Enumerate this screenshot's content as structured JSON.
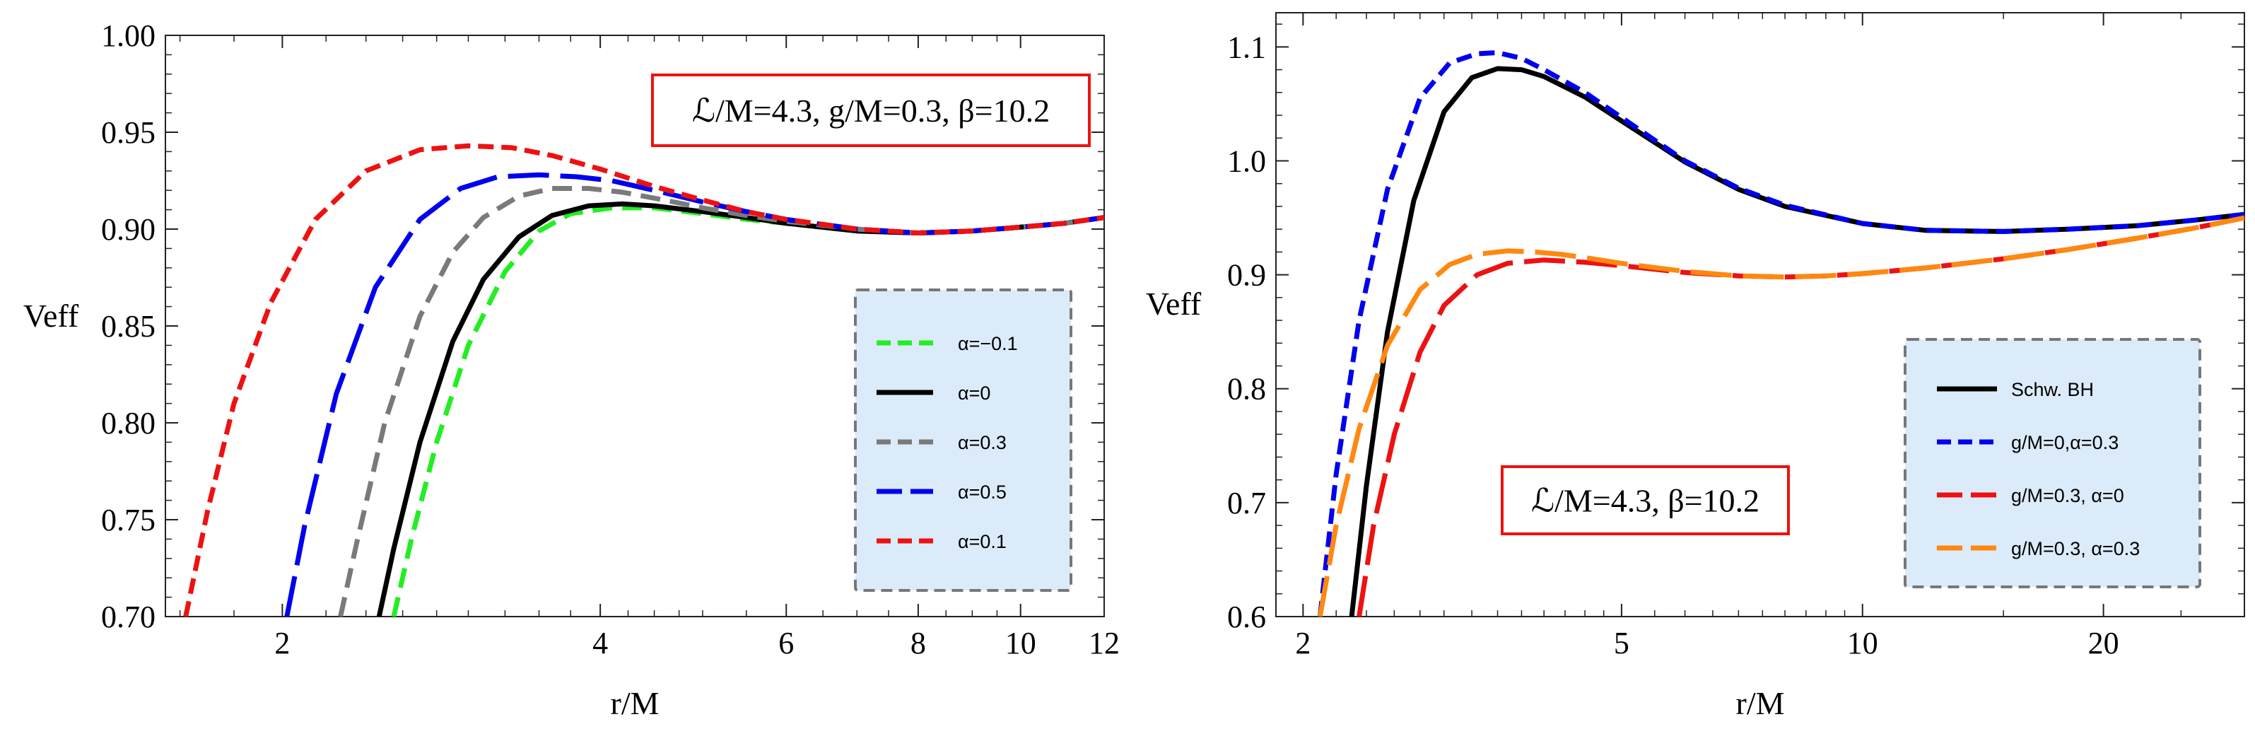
{
  "chart_data": [
    {
      "type": "line",
      "panel": "left",
      "xlabel": "r/M",
      "ylabel": "Veff",
      "xscale": "log",
      "xlim": [
        1.55,
        12
      ],
      "ylim": [
        0.7,
        1.0
      ],
      "x_ticks": [
        2,
        4,
        6,
        8,
        10,
        12
      ],
      "x_tick_labels": [
        "2",
        "4",
        "6",
        "8",
        "10",
        "12"
      ],
      "y_ticks": [
        0.7,
        0.75,
        0.8,
        0.85,
        0.9,
        0.95,
        1.0
      ],
      "y_tick_labels": [
        "0.70",
        "0.75",
        "0.80",
        "0.85",
        "0.90",
        "0.95",
        "1.00"
      ],
      "annotation": "ℒ/M=4.3, g/M=0.3, β=10.2",
      "legend_position": "right-middle",
      "series": [
        {
          "name": "α=−0.1",
          "color": "#22ee22",
          "dash": "medium-dash",
          "x": [
            2.55,
            2.65,
            2.8,
            3.0,
            3.25,
            3.5,
            3.75,
            4.1,
            4.5,
            5.0,
            5.5,
            6.0,
            7.0,
            8.0,
            9.0,
            10.0,
            11.0,
            12.0
          ],
          "y": [
            0.7,
            0.74,
            0.79,
            0.84,
            0.878,
            0.899,
            0.908,
            0.911,
            0.911,
            0.908,
            0.905,
            0.903,
            0.899,
            0.898,
            0.899,
            0.901,
            0.903,
            0.906
          ]
        },
        {
          "name": "α=0",
          "color": "#000000",
          "dash": "solid",
          "x": [
            2.47,
            2.55,
            2.7,
            2.9,
            3.1,
            3.35,
            3.6,
            3.9,
            4.2,
            4.5,
            5.0,
            5.5,
            6.0,
            7.0,
            8.0,
            9.0,
            10.0,
            11.0,
            12.0
          ],
          "y": [
            0.7,
            0.735,
            0.79,
            0.842,
            0.874,
            0.896,
            0.907,
            0.912,
            0.913,
            0.912,
            0.909,
            0.906,
            0.903,
            0.899,
            0.898,
            0.899,
            0.901,
            0.903,
            0.906
          ]
        },
        {
          "name": "α=0.3",
          "color": "#7a7a7a",
          "dash": "medium-dash",
          "x": [
            2.27,
            2.35,
            2.5,
            2.7,
            2.9,
            3.1,
            3.35,
            3.6,
            3.9,
            4.2,
            4.6,
            5.0,
            5.5,
            6.0,
            7.0,
            8.0,
            9.0,
            10.0,
            11.0,
            12.0
          ],
          "y": [
            0.7,
            0.737,
            0.8,
            0.855,
            0.888,
            0.906,
            0.917,
            0.921,
            0.921,
            0.919,
            0.915,
            0.911,
            0.907,
            0.904,
            0.9,
            0.898,
            0.899,
            0.901,
            0.903,
            0.906
          ]
        },
        {
          "name": "α=0.5",
          "color": "#0000ee",
          "dash": "long-dash",
          "x": [
            2.02,
            2.1,
            2.25,
            2.45,
            2.7,
            2.95,
            3.2,
            3.5,
            3.8,
            4.1,
            4.5,
            5.0,
            5.5,
            6.0,
            7.0,
            8.0,
            9.0,
            10.0,
            11.0,
            12.0
          ],
          "y": [
            0.7,
            0.747,
            0.815,
            0.87,
            0.905,
            0.921,
            0.927,
            0.928,
            0.927,
            0.925,
            0.92,
            0.914,
            0.909,
            0.905,
            0.9,
            0.898,
            0.899,
            0.901,
            0.903,
            0.906
          ]
        },
        {
          "name": "α=0.1",
          "color": "#ee1111",
          "dash": "short-dash",
          "x": [
            1.62,
            1.7,
            1.8,
            1.95,
            2.15,
            2.4,
            2.7,
            3.0,
            3.3,
            3.6,
            4.0,
            4.5,
            5.0,
            5.5,
            6.0,
            7.0,
            8.0,
            9.0,
            10.0,
            11.0,
            12.0
          ],
          "y": [
            0.7,
            0.755,
            0.81,
            0.862,
            0.905,
            0.93,
            0.941,
            0.943,
            0.942,
            0.938,
            0.931,
            0.922,
            0.915,
            0.909,
            0.905,
            0.9,
            0.898,
            0.899,
            0.901,
            0.903,
            0.906
          ]
        }
      ]
    },
    {
      "type": "line",
      "panel": "right",
      "xlabel": "r/M",
      "ylabel": "Veff",
      "xscale": "log",
      "xlim": [
        1.85,
        30
      ],
      "ylim": [
        0.6,
        1.13
      ],
      "x_ticks": [
        2,
        5,
        10,
        20
      ],
      "x_tick_labels": [
        "2",
        "5",
        "10",
        "20"
      ],
      "y_ticks": [
        0.6,
        0.7,
        0.8,
        0.9,
        1.0,
        1.1
      ],
      "y_tick_labels": [
        "0.6",
        "0.7",
        "0.8",
        "0.9",
        "1.0",
        "1.1"
      ],
      "annotation": "ℒ/M=4.3, β=10.2",
      "legend_position": "bottom-right",
      "series": [
        {
          "name": "Schw. BH",
          "color": "#000000",
          "dash": "solid",
          "x": [
            2.3,
            2.4,
            2.55,
            2.75,
            3.0,
            3.25,
            3.5,
            3.75,
            4.0,
            4.5,
            5.0,
            6.0,
            7.0,
            8.0,
            10.0,
            12.0,
            15.0,
            18.0,
            22.0,
            26.0,
            30.0
          ],
          "y": [
            0.6,
            0.715,
            0.85,
            0.965,
            1.043,
            1.073,
            1.081,
            1.08,
            1.074,
            1.056,
            1.035,
            0.999,
            0.975,
            0.96,
            0.945,
            0.939,
            0.938,
            0.94,
            0.943,
            0.948,
            0.953
          ]
        },
        {
          "name": "g/M=0,α=0.3",
          "color": "#0000ee",
          "dash": "short-dash",
          "x": [
            2.1,
            2.2,
            2.35,
            2.55,
            2.8,
            3.05,
            3.3,
            3.5,
            3.75,
            4.0,
            4.5,
            5.0,
            6.0,
            7.0,
            8.0,
            10.0,
            12.0,
            15.0,
            18.0,
            22.0,
            26.0,
            30.0
          ],
          "y": [
            0.6,
            0.725,
            0.86,
            0.975,
            1.055,
            1.086,
            1.094,
            1.095,
            1.09,
            1.08,
            1.06,
            1.038,
            1.0,
            0.976,
            0.961,
            0.945,
            0.939,
            0.938,
            0.94,
            0.943,
            0.948,
            0.953
          ]
        },
        {
          "name": "g/M=0.3, α=0",
          "color": "#ee1111",
          "dash": "long-dash",
          "x": [
            2.35,
            2.45,
            2.6,
            2.8,
            3.0,
            3.3,
            3.6,
            4.0,
            4.5,
            5.0,
            6.0,
            7.0,
            8.0,
            9.0,
            10.0,
            12.0,
            15.0,
            18.0,
            22.0,
            26.0,
            30.0
          ],
          "y": [
            0.6,
            0.68,
            0.76,
            0.832,
            0.873,
            0.9,
            0.91,
            0.913,
            0.911,
            0.908,
            0.902,
            0.899,
            0.898,
            0.899,
            0.901,
            0.906,
            0.914,
            0.922,
            0.932,
            0.941,
            0.95
          ]
        },
        {
          "name": "g/M=0.3, α=0.3",
          "color": "#ff8811",
          "dash": "long-dash",
          "x": [
            2.1,
            2.2,
            2.35,
            2.55,
            2.8,
            3.05,
            3.3,
            3.6,
            3.9,
            4.2,
            4.6,
            5.0,
            6.0,
            7.0,
            8.0,
            9.0,
            10.0,
            12.0,
            15.0,
            18.0,
            22.0,
            26.0,
            30.0
          ],
          "y": [
            0.6,
            0.68,
            0.765,
            0.838,
            0.887,
            0.909,
            0.918,
            0.921,
            0.92,
            0.918,
            0.914,
            0.91,
            0.903,
            0.899,
            0.898,
            0.899,
            0.901,
            0.906,
            0.914,
            0.922,
            0.932,
            0.941,
            0.95
          ]
        }
      ]
    }
  ]
}
